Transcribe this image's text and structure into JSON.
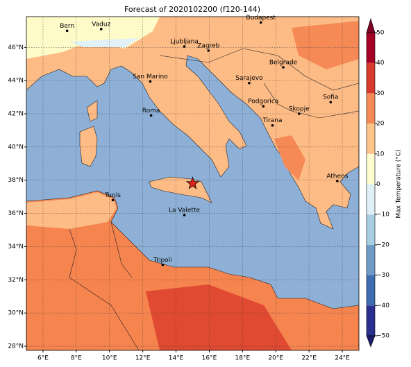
{
  "title": "Forecast of 2020102200 (f120-144)",
  "map": {
    "xlim": [
      5,
      25
    ],
    "ylim": [
      27.75,
      47.85
    ],
    "grid": true,
    "xticks": [
      {
        "value": 6,
        "label": "6°E"
      },
      {
        "value": 8,
        "label": "8°E"
      },
      {
        "value": 10,
        "label": "10°E"
      },
      {
        "value": 12,
        "label": "12°E"
      },
      {
        "value": 14,
        "label": "14°E"
      },
      {
        "value": 16,
        "label": "16°E"
      },
      {
        "value": 18,
        "label": "18°E"
      },
      {
        "value": 20,
        "label": "20°E"
      },
      {
        "value": 22,
        "label": "22°E"
      },
      {
        "value": 24,
        "label": "24°E"
      }
    ],
    "yticks": [
      {
        "value": 28,
        "label": "28°N"
      },
      {
        "value": 30,
        "label": "30°N"
      },
      {
        "value": 32,
        "label": "32°N"
      },
      {
        "value": 34,
        "label": "34°N"
      },
      {
        "value": 36,
        "label": "36°N"
      },
      {
        "value": 38,
        "label": "38°N"
      },
      {
        "value": 40,
        "label": "40°N"
      },
      {
        "value": 42,
        "label": "42°N"
      },
      {
        "value": 44,
        "label": "44°N"
      },
      {
        "value": 46,
        "label": "46°N"
      }
    ],
    "cities": [
      {
        "name": "Bern",
        "lon": 7.45,
        "lat": 47.0
      },
      {
        "name": "Vaduz",
        "lon": 9.5,
        "lat": 47.1
      },
      {
        "name": "Budapest",
        "lon": 19.1,
        "lat": 47.5
      },
      {
        "name": "Ljubljana",
        "lon": 14.5,
        "lat": 46.05
      },
      {
        "name": "Zagreb",
        "lon": 15.95,
        "lat": 45.8
      },
      {
        "name": "Belgrade",
        "lon": 20.45,
        "lat": 44.8
      },
      {
        "name": "San Marino",
        "lon": 12.45,
        "lat": 43.95
      },
      {
        "name": "Sarajevo",
        "lon": 18.4,
        "lat": 43.85
      },
      {
        "name": "Sofia",
        "lon": 23.3,
        "lat": 42.7
      },
      {
        "name": "Podgorica",
        "lon": 19.25,
        "lat": 42.45
      },
      {
        "name": "Skopje",
        "lon": 21.4,
        "lat": 42.0
      },
      {
        "name": "Roma",
        "lon": 12.5,
        "lat": 41.9
      },
      {
        "name": "Tirana",
        "lon": 19.8,
        "lat": 41.3
      },
      {
        "name": "Athens",
        "lon": 23.7,
        "lat": 37.95
      },
      {
        "name": "Tunis",
        "lon": 10.2,
        "lat": 36.8
      },
      {
        "name": "La Valette",
        "lon": 14.5,
        "lat": 35.9
      },
      {
        "name": "Tripoli",
        "lon": 13.2,
        "lat": 32.9
      }
    ],
    "marker": {
      "lon": 15.0,
      "lat": 37.8,
      "color": "#e0201b"
    }
  },
  "colorbar": {
    "label": "Max Temperature (°C)",
    "ticks": [
      {
        "value": -50,
        "label": "−50"
      },
      {
        "value": -40,
        "label": "−40"
      },
      {
        "value": -30,
        "label": "−30"
      },
      {
        "value": -20,
        "label": "−20"
      },
      {
        "value": -10,
        "label": "−10"
      },
      0,
      10,
      20,
      30,
      40,
      50
    ],
    "colors": [
      "#2b2f8f",
      "#3d6cb0",
      "#6f9bc8",
      "#a8cde3",
      "#dff1f7",
      "#fefcd0",
      "#fdc58a",
      "#f68a56",
      "#d83a2e",
      "#a50026"
    ],
    "under_color": "#1c1c6b",
    "over_color": "#800026"
  }
}
